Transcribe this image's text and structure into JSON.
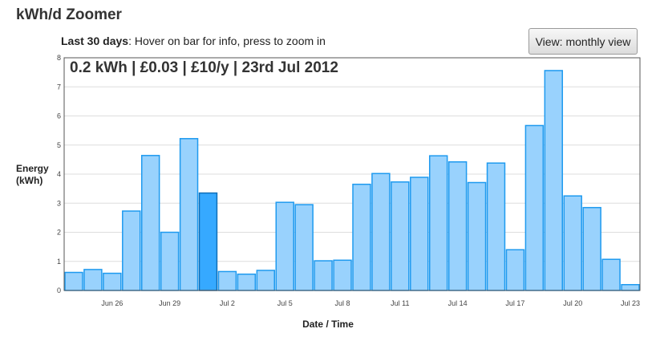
{
  "app": {
    "title": "kWh/d Zoomer"
  },
  "subtitle": {
    "range_label": "Last 30 days",
    "hint": ": Hover on bar for info, press to zoom in"
  },
  "view_button": {
    "label": "View: monthly view"
  },
  "info": {
    "text": "0.2 kWh | £0.03 | £10/y | 23rd Jul 2012"
  },
  "axes": {
    "ylabel_line1": "Energy",
    "ylabel_line2": "(kWh)",
    "xlabel": "Date / Time"
  },
  "colors": {
    "bar_fill": "#99d2fd",
    "bar_stroke": "#1e9aef",
    "bar_highlight": "#36a9ff",
    "highlight_stroke": "#0f6fb8",
    "grid": "#dddddd",
    "frame": "#555555"
  },
  "chart_data": {
    "type": "bar",
    "xlabel": "Date / Time",
    "ylabel": "Energy (kWh)",
    "ylim": [
      0,
      8
    ],
    "yticks": [
      0,
      1,
      2,
      3,
      4,
      5,
      6,
      7,
      8
    ],
    "grid": true,
    "days": [
      "Jun 24",
      "Jun 25",
      "Jun 26",
      "Jun 27",
      "Jun 28",
      "Jun 29",
      "Jun 30",
      "Jul 1",
      "Jul 2",
      "Jul 3",
      "Jul 4",
      "Jul 5",
      "Jul 6",
      "Jul 7",
      "Jul 8",
      "Jul 9",
      "Jul 10",
      "Jul 11",
      "Jul 12",
      "Jul 13",
      "Jul 14",
      "Jul 15",
      "Jul 16",
      "Jul 17",
      "Jul 18",
      "Jul 19",
      "Jul 20",
      "Jul 21",
      "Jul 22",
      "Jul 23"
    ],
    "values": [
      0.62,
      0.72,
      0.59,
      2.73,
      4.64,
      2.0,
      5.22,
      3.35,
      0.65,
      0.56,
      0.69,
      3.03,
      2.95,
      1.02,
      1.04,
      3.65,
      4.02,
      3.73,
      3.89,
      4.63,
      4.42,
      3.71,
      4.38,
      1.4,
      5.67,
      7.56,
      3.25,
      2.85,
      1.07,
      0.2
    ],
    "highlighted_day": "Jul 1",
    "xtick_labels": [
      "Jun 26",
      "Jun 29",
      "Jul 2",
      "Jul 5",
      "Jul 8",
      "Jul 11",
      "Jul 14",
      "Jul 17",
      "Jul 20",
      "Jul 23"
    ]
  }
}
